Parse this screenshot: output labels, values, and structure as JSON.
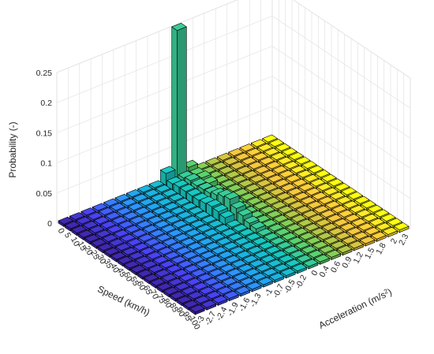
{
  "chart_data": {
    "type": "bar3d",
    "xlabel": "Speed (km/h)",
    "ylabel_prefix": "Acceleration (m/s",
    "ylabel_sup": "2",
    "ylabel_suffix": ")",
    "zlabel": "Probability (-)",
    "x_ticks": [
      "0",
      "5",
      "10",
      "15",
      "20",
      "25",
      "30",
      "35",
      "40",
      "45",
      "50",
      "55",
      "60",
      "65",
      "70",
      "75",
      "80",
      "85",
      "90",
      "95",
      "100"
    ],
    "y_ticks": [
      "-3",
      "-2.7",
      "-2.4",
      "-1.9",
      "-1.6",
      "-1.3",
      "-1",
      "-0.7",
      "-0.5",
      "-0.2",
      "0",
      "0.4",
      "0.6",
      "0.9",
      "1.2",
      "1.5",
      "1.8",
      "2",
      "2.3"
    ],
    "z_ticks": [
      "0",
      "0.05",
      "0.1",
      "0.15",
      "0.2",
      "0.25"
    ],
    "zlim": [
      0,
      0.25
    ],
    "colormap": [
      "#3e26a8",
      "#4743f0",
      "#2e87f7",
      "#1ba9db",
      "#16bfb7",
      "#5ec962",
      "#c0bc3c",
      "#fdc03a",
      "#f9fb0e"
    ],
    "bar_outline_color": "#000000",
    "bars": [
      {
        "speed": "0",
        "accel": "0",
        "p": 0.25
      },
      {
        "speed": "0",
        "accel": "-0.2",
        "p": 0.02
      },
      {
        "speed": "0",
        "accel": "0.4",
        "p": 0.015
      },
      {
        "speed": "5",
        "accel": "0",
        "p": 0.012
      },
      {
        "speed": "5",
        "accel": "-0.2",
        "p": 0.01
      },
      {
        "speed": "5",
        "accel": "0.4",
        "p": 0.01
      },
      {
        "speed": "10",
        "accel": "0",
        "p": 0.015
      },
      {
        "speed": "10",
        "accel": "-0.2",
        "p": 0.012
      },
      {
        "speed": "10",
        "accel": "0.4",
        "p": 0.012
      },
      {
        "speed": "15",
        "accel": "0",
        "p": 0.014
      },
      {
        "speed": "15",
        "accel": "-0.2",
        "p": 0.012
      },
      {
        "speed": "15",
        "accel": "0.4",
        "p": 0.01
      },
      {
        "speed": "20",
        "accel": "0",
        "p": 0.015
      },
      {
        "speed": "20",
        "accel": "-0.2",
        "p": 0.012
      },
      {
        "speed": "25",
        "accel": "0",
        "p": 0.016
      },
      {
        "speed": "25",
        "accel": "-0.2",
        "p": 0.012
      },
      {
        "speed": "30",
        "accel": "0",
        "p": 0.02
      },
      {
        "speed": "30",
        "accel": "-0.2",
        "p": 0.014
      },
      {
        "speed": "35",
        "accel": "0",
        "p": 0.025
      },
      {
        "speed": "35",
        "accel": "-0.2",
        "p": 0.016
      },
      {
        "speed": "40",
        "accel": "0",
        "p": 0.028
      },
      {
        "speed": "40",
        "accel": "-0.2",
        "p": 0.015
      },
      {
        "speed": "45",
        "accel": "0",
        "p": 0.02
      },
      {
        "speed": "45",
        "accel": "-0.2",
        "p": 0.012
      },
      {
        "speed": "50",
        "accel": "0",
        "p": 0.015
      },
      {
        "speed": "55",
        "accel": "0",
        "p": 0.01
      },
      {
        "speed": "60",
        "accel": "0",
        "p": 0.008
      }
    ]
  }
}
